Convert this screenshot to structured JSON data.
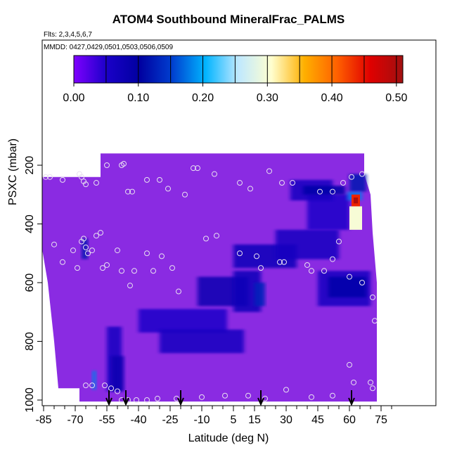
{
  "figure": {
    "title": "ATOM4 Southbound MineralFrac_PALMS",
    "flights_note": "Flts: 2,3,4,5,6,7",
    "dates_note": "MMDD: 0427,0429,0501,0503,0506,0509"
  },
  "colors": {
    "background_fill": "#8a2be2",
    "colorbar_stops": [
      "#7f00ff",
      "#1a00c8",
      "#0000a0",
      "#0040d0",
      "#00b4ff",
      "#bfe8ff",
      "#ffffd0",
      "#ffb000",
      "#ff6000",
      "#e00000",
      "#a01010"
    ]
  },
  "chart_data": {
    "type": "heatmap",
    "title": "ATOM4 Southbound MineralFrac_PALMS",
    "xlabel": "Latitude (deg N)",
    "ylabel": "PSXC (mbar)",
    "xlim": [
      -88,
      80
    ],
    "ylim": [
      1010,
      20
    ],
    "y_inverted": true,
    "x_ticks": [
      -85,
      -70,
      -55,
      -40,
      -25,
      -10,
      5,
      15,
      30,
      45,
      60,
      75
    ],
    "x_minor_ticks": [
      -80,
      -75,
      -65,
      -60,
      -50,
      -45,
      -35,
      -30,
      -20,
      -15,
      -5,
      0,
      10,
      20,
      25,
      35,
      40,
      50,
      55,
      65,
      70,
      80
    ],
    "y_ticks": [
      200,
      400,
      600,
      800,
      1000
    ],
    "colorbar": {
      "min": 0.0,
      "max": 0.51,
      "ticks": [
        "0.00",
        "0.10",
        "0.20",
        "0.30",
        "0.40",
        "0.50"
      ],
      "tick_values": [
        0.0,
        0.1,
        0.2,
        0.3,
        0.4,
        0.5
      ],
      "divisions": [
        0.05,
        0.1,
        0.15,
        0.2,
        0.25,
        0.3,
        0.35,
        0.4,
        0.45,
        0.5
      ]
    },
    "profile_markers_lat": [
      -54,
      -46,
      -20,
      18,
      61
    ],
    "cells": [
      {
        "lat": [
          -55,
          -48
        ],
        "p": [
          750,
          970
        ],
        "value": 0.06
      },
      {
        "lat": [
          -53,
          -47
        ],
        "p": [
          850,
          970
        ],
        "value": 0.08
      },
      {
        "lat": [
          -62,
          -60
        ],
        "p": [
          900,
          965
        ],
        "value": 0.18
      },
      {
        "lat": [
          -40,
          2
        ],
        "p": [
          690,
          770
        ],
        "value": 0.05
      },
      {
        "lat": [
          -30,
          10
        ],
        "p": [
          760,
          840
        ],
        "value": 0.06
      },
      {
        "lat": [
          -12,
          12
        ],
        "p": [
          580,
          680
        ],
        "value": 0.08
      },
      {
        "lat": [
          5,
          18
        ],
        "p": [
          560,
          700
        ],
        "value": 0.07
      },
      {
        "lat": [
          15,
          20
        ],
        "p": [
          600,
          680
        ],
        "value": 0.13
      },
      {
        "lat": [
          5,
          35
        ],
        "p": [
          470,
          550
        ],
        "value": 0.07
      },
      {
        "lat": [
          25,
          55
        ],
        "p": [
          420,
          520
        ],
        "value": 0.06
      },
      {
        "lat": [
          40,
          60
        ],
        "p": [
          300,
          420
        ],
        "value": 0.05
      },
      {
        "lat": [
          45,
          70
        ],
        "p": [
          560,
          680
        ],
        "value": 0.06
      },
      {
        "lat": [
          50,
          68
        ],
        "p": [
          580,
          650
        ],
        "value": 0.09
      },
      {
        "lat": [
          32,
          52
        ],
        "p": [
          250,
          320
        ],
        "value": 0.06
      },
      {
        "lat": [
          38,
          58
        ],
        "p": [
          270,
          300
        ],
        "value": 0.09
      },
      {
        "lat": [
          60,
          68
        ],
        "p": [
          230,
          290
        ],
        "value": 0.12
      },
      {
        "lat": [
          59,
          66
        ],
        "p": [
          290,
          320
        ],
        "value": 0.18
      },
      {
        "lat": [
          60,
          66
        ],
        "p": [
          340,
          420
        ],
        "value": 0.3
      },
      {
        "lat": [
          61,
          65
        ],
        "p": [
          300,
          340
        ],
        "value": 0.44
      },
      {
        "lat": [
          62,
          64
        ],
        "p": [
          310,
          330
        ],
        "value": 0.5
      },
      {
        "lat": [
          -67,
          -64
        ],
        "p": [
          450,
          520
        ],
        "value": 0.12
      }
    ],
    "sample_points": [
      {
        "lat": -84,
        "p": 240
      },
      {
        "lat": -82,
        "p": 240
      },
      {
        "lat": -76,
        "p": 250
      },
      {
        "lat": -68,
        "p": 230
      },
      {
        "lat": -67,
        "p": 240
      },
      {
        "lat": -66,
        "p": 255
      },
      {
        "lat": -65,
        "p": 265
      },
      {
        "lat": -60,
        "p": 260
      },
      {
        "lat": -55,
        "p": 200
      },
      {
        "lat": -48,
        "p": 200
      },
      {
        "lat": -47,
        "p": 195
      },
      {
        "lat": -45,
        "p": 290
      },
      {
        "lat": -43,
        "p": 290
      },
      {
        "lat": -36,
        "p": 250
      },
      {
        "lat": -30,
        "p": 250
      },
      {
        "lat": -26,
        "p": 280
      },
      {
        "lat": -18,
        "p": 300
      },
      {
        "lat": -14,
        "p": 210
      },
      {
        "lat": -12,
        "p": 210
      },
      {
        "lat": -4,
        "p": 230
      },
      {
        "lat": 8,
        "p": 260
      },
      {
        "lat": 13,
        "p": 280
      },
      {
        "lat": 22,
        "p": 220
      },
      {
        "lat": 28,
        "p": 260
      },
      {
        "lat": 33,
        "p": 260
      },
      {
        "lat": 46,
        "p": 290
      },
      {
        "lat": 52,
        "p": 290
      },
      {
        "lat": 57,
        "p": 260
      },
      {
        "lat": 61,
        "p": 240
      },
      {
        "lat": 66,
        "p": 230
      },
      {
        "lat": -80,
        "p": 470
      },
      {
        "lat": -76,
        "p": 530
      },
      {
        "lat": -71,
        "p": 490
      },
      {
        "lat": -69,
        "p": 550
      },
      {
        "lat": -67,
        "p": 460
      },
      {
        "lat": -66,
        "p": 450
      },
      {
        "lat": -65,
        "p": 480
      },
      {
        "lat": -64,
        "p": 500
      },
      {
        "lat": -62,
        "p": 490
      },
      {
        "lat": -60,
        "p": 440
      },
      {
        "lat": -58,
        "p": 430
      },
      {
        "lat": -57,
        "p": 550
      },
      {
        "lat": -55,
        "p": 540
      },
      {
        "lat": -50,
        "p": 490
      },
      {
        "lat": -48,
        "p": 560
      },
      {
        "lat": -44,
        "p": 610
      },
      {
        "lat": -42,
        "p": 560
      },
      {
        "lat": -36,
        "p": 500
      },
      {
        "lat": -33,
        "p": 560
      },
      {
        "lat": -29,
        "p": 510
      },
      {
        "lat": -24,
        "p": 550
      },
      {
        "lat": -21,
        "p": 630
      },
      {
        "lat": -8,
        "p": 450
      },
      {
        "lat": -3,
        "p": 440
      },
      {
        "lat": 8,
        "p": 500
      },
      {
        "lat": 16,
        "p": 510
      },
      {
        "lat": 18,
        "p": 550
      },
      {
        "lat": 27,
        "p": 530
      },
      {
        "lat": 29,
        "p": 530
      },
      {
        "lat": 40,
        "p": 540
      },
      {
        "lat": 42,
        "p": 560
      },
      {
        "lat": 48,
        "p": 560
      },
      {
        "lat": 52,
        "p": 520
      },
      {
        "lat": 55,
        "p": 460
      },
      {
        "lat": 60,
        "p": 580
      },
      {
        "lat": 66,
        "p": 600
      },
      {
        "lat": 71,
        "p": 650
      },
      {
        "lat": 72,
        "p": 730
      },
      {
        "lat": 60,
        "p": 880
      },
      {
        "lat": -56,
        "p": 950
      },
      {
        "lat": -53,
        "p": 960
      },
      {
        "lat": -50,
        "p": 970
      },
      {
        "lat": -48,
        "p": 1000
      },
      {
        "lat": -45,
        "p": 1000
      },
      {
        "lat": -41,
        "p": 1000
      },
      {
        "lat": -36,
        "p": 1000
      },
      {
        "lat": -31,
        "p": 995
      },
      {
        "lat": -22,
        "p": 995
      },
      {
        "lat": -10,
        "p": 990
      },
      {
        "lat": 1,
        "p": 985
      },
      {
        "lat": 12,
        "p": 985
      },
      {
        "lat": 20,
        "p": 995
      },
      {
        "lat": 30,
        "p": 965
      },
      {
        "lat": 42,
        "p": 990
      },
      {
        "lat": 52,
        "p": 985
      },
      {
        "lat": 71,
        "p": 960
      },
      {
        "lat": 70,
        "p": 940
      },
      {
        "lat": 62,
        "p": 940
      },
      {
        "lat": -65,
        "p": 950
      },
      {
        "lat": -62,
        "p": 950
      }
    ]
  }
}
